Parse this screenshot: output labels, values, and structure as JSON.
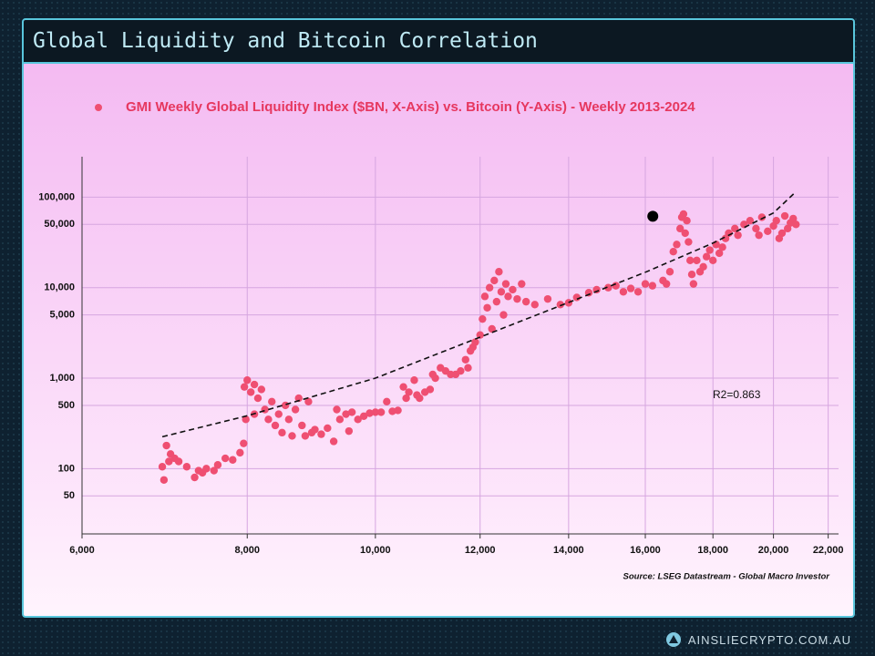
{
  "header": {
    "title": "Global Liquidity and Bitcoin Correlation"
  },
  "chart_data": {
    "type": "scatter",
    "title": "GMI Weekly Global Liquidity Index ($BN, X-Axis) vs. Bitcoin (Y-Axis) - Weekly 2013-2024",
    "x_log": true,
    "y_log": true,
    "grid": true,
    "legend": "top",
    "xlim": [
      6000,
      22400
    ],
    "ylim": [
      19,
      280000
    ],
    "xticks": [
      {
        "value": 6000,
        "label": "6,000"
      },
      {
        "value": 8000,
        "label": "8,000"
      },
      {
        "value": 10000,
        "label": "10,000"
      },
      {
        "value": 12000,
        "label": "12,000"
      },
      {
        "value": 14000,
        "label": "14,000"
      },
      {
        "value": 16000,
        "label": "16,000"
      },
      {
        "value": 18000,
        "label": "18,000"
      },
      {
        "value": 20000,
        "label": "20,000"
      },
      {
        "value": 22000,
        "label": "22,000"
      }
    ],
    "yticks": [
      50,
      100,
      {
        "value": 500,
        "label": "500"
      },
      {
        "value": 1000,
        "label": "1,000"
      },
      {
        "value": 5000,
        "label": "5,000"
      },
      {
        "value": 10000,
        "label": "10,000"
      },
      {
        "value": 50000,
        "label": "50,000"
      },
      {
        "value": 100000,
        "label": "100,000"
      }
    ],
    "x": [
      6900,
      6920,
      6950,
      6980,
      7000,
      7050,
      7100,
      7200,
      7300,
      7350,
      7400,
      7450,
      7550,
      7600,
      7700,
      7800,
      7900,
      7950,
      7980,
      7960,
      8000,
      8050,
      8100,
      8150,
      8200,
      8100,
      8250,
      8300,
      8350,
      8400,
      8450,
      8500,
      8550,
      8600,
      8650,
      8700,
      8750,
      8800,
      8850,
      8900,
      8950,
      9000,
      9100,
      9200,
      9300,
      9350,
      9400,
      9500,
      9550,
      9600,
      9700,
      9800,
      9900,
      10000,
      10100,
      10200,
      10300,
      10400,
      10500,
      10550,
      10600,
      10700,
      10750,
      10800,
      10900,
      11000,
      11050,
      11100,
      11200,
      11300,
      11400,
      11500,
      11600,
      11700,
      11750,
      11800,
      11850,
      11900,
      12000,
      12050,
      12100,
      12150,
      12200,
      12250,
      12300,
      12350,
      12400,
      12450,
      12500,
      12550,
      12600,
      12700,
      12800,
      12900,
      13000,
      13200,
      13500,
      13800,
      14000,
      14200,
      14500,
      14700,
      15000,
      15200,
      15400,
      15600,
      15800,
      16000,
      16200,
      16500,
      16600,
      16700,
      16800,
      16900,
      17000,
      17050,
      17100,
      17150,
      17200,
      17250,
      17300,
      17350,
      17400,
      17500,
      17600,
      17700,
      17800,
      17900,
      18000,
      18100,
      18200,
      18300,
      18400,
      18500,
      18700,
      18800,
      19000,
      19200,
      19400,
      19500,
      19600,
      19800,
      20000,
      20100,
      20200,
      20300,
      20400,
      20500,
      20600,
      20700,
      20800
    ],
    "series": [
      {
        "name": "GMI Weekly Global Liquidity Index ($BN, X-Axis) vs. Bitcoin (Y-Axis) - Weekly 2013-2024",
        "color": "#ef4f72",
        "values": [
          105,
          75,
          180,
          120,
          145,
          130,
          120,
          105,
          80,
          95,
          90,
          100,
          95,
          110,
          130,
          125,
          150,
          190,
          350,
          800,
          950,
          700,
          850,
          600,
          750,
          400,
          450,
          350,
          550,
          300,
          400,
          250,
          500,
          350,
          230,
          450,
          600,
          300,
          230,
          550,
          250,
          270,
          240,
          280,
          200,
          450,
          350,
          400,
          260,
          420,
          350,
          380,
          410,
          420,
          420,
          550,
          430,
          440,
          800,
          600,
          700,
          950,
          650,
          600,
          700,
          750,
          1100,
          1000,
          1300,
          1200,
          1100,
          1100,
          1200,
          1600,
          1300,
          2000,
          2200,
          2500,
          3000,
          4500,
          8000,
          6000,
          10000,
          3500,
          12000,
          7000,
          15000,
          9000,
          5000,
          11000,
          8000,
          9500,
          7500,
          11000,
          7000,
          6500,
          7500,
          6500,
          6800,
          7800,
          8800,
          9500,
          10000,
          10500,
          9000,
          9800,
          9000,
          11000,
          10500,
          12000,
          11000,
          15000,
          25000,
          30000,
          45000,
          60000,
          65000,
          40000,
          55000,
          32000,
          20000,
          14000,
          11000,
          20000,
          15000,
          17000,
          22000,
          26000,
          20000,
          30000,
          24000,
          28000,
          35000,
          40000,
          45000,
          38000,
          50000,
          55000,
          45000,
          38000,
          60000,
          42000,
          48000,
          55000,
          35000,
          40000,
          62000,
          45000,
          52000,
          58000,
          50000
        ]
      }
    ],
    "highlight": {
      "x": 16210,
      "y": 61500,
      "color": "#000000"
    },
    "trendline": {
      "x": [
        6900,
        8000,
        10000,
        12000,
        14000,
        16000,
        18000,
        20000,
        20800
      ],
      "y": [
        225,
        384,
        1000,
        2840,
        6870,
        14800,
        31100,
        67000,
        115000
      ]
    },
    "annotation": "R2=0.863",
    "source": "Source: LSEG Datastream - Global Macro Investor"
  },
  "footer": {
    "brand": "AINSLIECRYPTO.COM.AU"
  }
}
